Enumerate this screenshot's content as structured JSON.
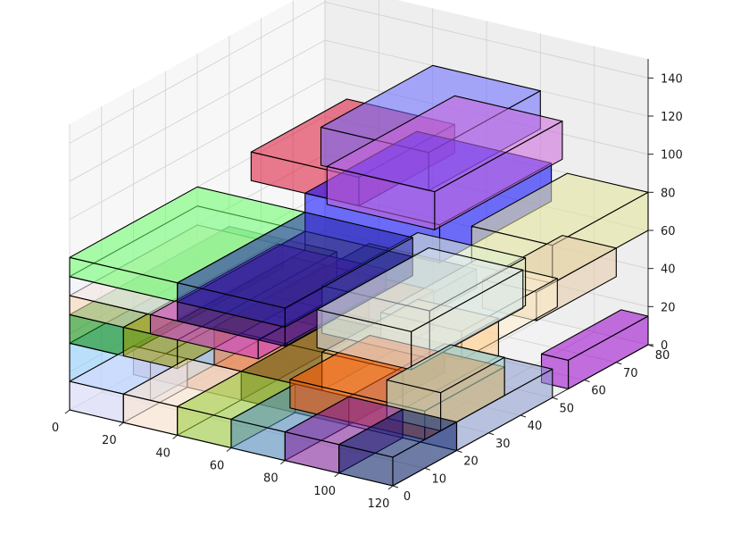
{
  "chart_data": {
    "type": "3d-bar",
    "title": "",
    "xlabel": "",
    "ylabel": "",
    "zlabel": "",
    "xlim": [
      0,
      120
    ],
    "ylim": [
      0,
      80
    ],
    "zlim": [
      0,
      150
    ],
    "x_ticks": [
      "0",
      "20",
      "40",
      "60",
      "80",
      "100",
      "120"
    ],
    "y_ticks": [
      "0",
      "10",
      "20",
      "30",
      "40",
      "50",
      "60",
      "70",
      "80"
    ],
    "z_ticks": [
      "0",
      "20",
      "40",
      "60",
      "80",
      "100",
      "120",
      "140"
    ],
    "grid": true,
    "boxes": [
      {
        "x": 0,
        "y": 0,
        "z": 0,
        "dx": 20,
        "dy": 20,
        "dz": 15,
        "color": "#d9d9ff"
      },
      {
        "x": 20,
        "y": 0,
        "z": 0,
        "dx": 20,
        "dy": 20,
        "dz": 15,
        "color": "#ffe6cc"
      },
      {
        "x": 40,
        "y": 0,
        "z": 0,
        "dx": 20,
        "dy": 20,
        "dz": 15,
        "color": "#99cc33"
      },
      {
        "x": 60,
        "y": 0,
        "z": 0,
        "dx": 20,
        "dy": 20,
        "dz": 15,
        "color": "#4d88bb"
      },
      {
        "x": 80,
        "y": 0,
        "z": 0,
        "dx": 20,
        "dy": 20,
        "dz": 15,
        "color": "#7f1a99"
      },
      {
        "x": 100,
        "y": 0,
        "z": 0,
        "dx": 20,
        "dy": 20,
        "dz": 15,
        "color": "#001a66"
      },
      {
        "x": 0,
        "y": 20,
        "z": 0,
        "dx": 40,
        "dy": 40,
        "dz": 15,
        "color": "#cc8877"
      },
      {
        "x": 40,
        "y": 20,
        "z": 0,
        "dx": 40,
        "dy": 30,
        "dz": 15,
        "color": "#555500"
      },
      {
        "x": 80,
        "y": 20,
        "z": 0,
        "dx": 40,
        "dy": 30,
        "dz": 15,
        "color": "#8899cc"
      },
      {
        "x": 110,
        "y": 55,
        "z": 0,
        "dx": 10,
        "dy": 25,
        "dz": 15,
        "color": "#9900cc"
      },
      {
        "x": 0,
        "y": 0,
        "z": 15,
        "dx": 30,
        "dy": 55,
        "dz": 20,
        "color": "#88ccff"
      },
      {
        "x": 30,
        "y": 20,
        "z": 15,
        "dx": 40,
        "dy": 35,
        "dz": 20,
        "color": "#f08040"
      },
      {
        "x": 70,
        "y": 20,
        "z": 15,
        "dx": 30,
        "dy": 30,
        "dz": 20,
        "color": "#ffcc88"
      },
      {
        "x": 100,
        "y": 15,
        "z": 15,
        "dx": 20,
        "dy": 20,
        "dz": 20,
        "color": "#b3e6cc"
      },
      {
        "x": 70,
        "y": 10,
        "z": 15,
        "dx": 50,
        "dy": 25,
        "dz": 15,
        "color": "#ff5500"
      },
      {
        "x": 0,
        "y": 0,
        "z": 35,
        "dx": 20,
        "dy": 50,
        "dz": 15,
        "color": "#008800"
      },
      {
        "x": 20,
        "y": 0,
        "z": 35,
        "dx": 20,
        "dy": 50,
        "dz": 15,
        "color": "#999900"
      },
      {
        "x": 40,
        "y": 30,
        "z": 35,
        "dx": 40,
        "dy": 30,
        "dz": 10,
        "color": "#556677"
      },
      {
        "x": 80,
        "y": 30,
        "z": 35,
        "dx": 30,
        "dy": 30,
        "dz": 15,
        "color": "#ffeecc"
      },
      {
        "x": 0,
        "y": 0,
        "z": 50,
        "dx": 30,
        "dy": 40,
        "dz": 10,
        "color": "#f5d6b0"
      },
      {
        "x": 30,
        "y": 0,
        "z": 50,
        "dx": 40,
        "dy": 40,
        "dz": 10,
        "color": "#cc33cc"
      },
      {
        "x": 70,
        "y": 20,
        "z": 45,
        "dx": 40,
        "dy": 30,
        "dz": 25,
        "color": "#ddeecc"
      },
      {
        "x": 100,
        "y": 45,
        "z": 45,
        "dx": 20,
        "dy": 25,
        "dz": 15,
        "color": "#e6ccaa"
      },
      {
        "x": 0,
        "y": 0,
        "z": 60,
        "dx": 40,
        "dy": 40,
        "dz": 10,
        "color": "#f2f2ff"
      },
      {
        "x": 40,
        "y": 0,
        "z": 60,
        "dx": 40,
        "dy": 40,
        "dz": 10,
        "color": "#000066"
      },
      {
        "x": 80,
        "y": 10,
        "z": 50,
        "dx": 35,
        "dy": 35,
        "dz": 20,
        "color": "#dde8f2"
      },
      {
        "x": 0,
        "y": 0,
        "z": 70,
        "dx": 40,
        "dy": 40,
        "dz": 10,
        "color": "#66ff66"
      },
      {
        "x": 40,
        "y": 0,
        "z": 70,
        "dx": 40,
        "dy": 40,
        "dz": 10,
        "color": "#2222aa"
      },
      {
        "x": 90,
        "y": 50,
        "z": 60,
        "dx": 30,
        "dy": 30,
        "dz": 20,
        "color": "#e6e699"
      },
      {
        "x": 40,
        "y": 40,
        "z": 70,
        "dx": 50,
        "dy": 35,
        "dz": 20,
        "color": "#0000ff"
      },
      {
        "x": 20,
        "y": 40,
        "z": 90,
        "dx": 40,
        "dy": 30,
        "dz": 15,
        "color": "#dd1133"
      },
      {
        "x": 40,
        "y": 45,
        "z": 100,
        "dx": 40,
        "dy": 35,
        "dz": 20,
        "color": "#6666ff"
      },
      {
        "x": 60,
        "y": 30,
        "z": 100,
        "dx": 40,
        "dy": 40,
        "dz": 20,
        "color": "#cc66dd"
      }
    ]
  }
}
